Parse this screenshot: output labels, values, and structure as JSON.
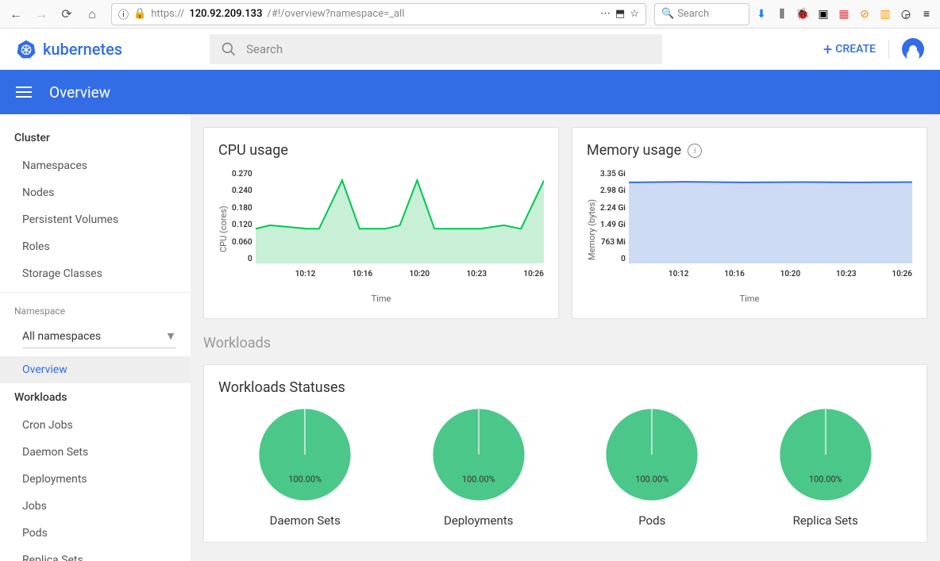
{
  "browser": {
    "url_prefix": "https://",
    "url_host": "120.92.209.133",
    "url_path": "/#!/overview?namespace=_all",
    "search_placeholder": "Search"
  },
  "header": {
    "brand": "kubernetes",
    "search_placeholder": "Search",
    "create": "CREATE"
  },
  "bluebar": {
    "title": "Overview"
  },
  "sidebar": {
    "cluster_heading": "Cluster",
    "cluster_items": [
      "Namespaces",
      "Nodes",
      "Persistent Volumes",
      "Roles",
      "Storage Classes"
    ],
    "namespace_heading": "Namespace",
    "namespace_select": "All namespaces",
    "overview": "Overview",
    "workloads_heading": "Workloads",
    "workloads_items": [
      "Cron Jobs",
      "Daemon Sets",
      "Deployments",
      "Jobs",
      "Pods",
      "Replica Sets"
    ]
  },
  "charts": {
    "cpu": {
      "title": "CPU usage",
      "ylabel": "CPU (cores)",
      "xlabel": "Time",
      "yticks": [
        "0.270",
        "0.240",
        "0.180",
        "0.120",
        "0.060",
        "0"
      ],
      "xticks": [
        "10:12",
        "10:16",
        "10:20",
        "10:23",
        "10:26"
      ],
      "ylim": [
        0,
        0.27
      ],
      "points": [
        [
          0,
          0.1
        ],
        [
          0.05,
          0.11
        ],
        [
          0.18,
          0.1
        ],
        [
          0.22,
          0.1
        ],
        [
          0.3,
          0.24
        ],
        [
          0.36,
          0.1
        ],
        [
          0.45,
          0.1
        ],
        [
          0.5,
          0.11
        ],
        [
          0.56,
          0.24
        ],
        [
          0.62,
          0.1
        ],
        [
          0.7,
          0.1
        ],
        [
          0.78,
          0.1
        ],
        [
          0.86,
          0.11
        ],
        [
          0.92,
          0.1
        ],
        [
          1.0,
          0.24
        ]
      ],
      "line_color": "#00c752",
      "fill_color": "#c8f0d7"
    },
    "memory": {
      "title": "Memory usage",
      "ylabel": "Memory (bytes)",
      "xlabel": "Time",
      "yticks": [
        "3.35 Gi",
        "2.98 Gi",
        "2.24 Gi",
        "1.49 Gi",
        "763 Mi",
        "0"
      ],
      "xticks": [
        "10:12",
        "10:16",
        "10:20",
        "10:23",
        "10:26"
      ],
      "ylim": [
        0,
        3.35
      ],
      "points": [
        [
          0,
          2.9
        ],
        [
          0.2,
          2.92
        ],
        [
          0.4,
          2.9
        ],
        [
          0.6,
          2.91
        ],
        [
          0.8,
          2.9
        ],
        [
          1.0,
          2.91
        ]
      ],
      "line_color": "#326de6",
      "fill_color": "#cddbf5"
    }
  },
  "workloads": {
    "section_title": "Workloads",
    "card_title": "Workloads Statuses",
    "color": "#4cc78a",
    "items": [
      {
        "label": "Daemon Sets",
        "pct": "100.00%"
      },
      {
        "label": "Deployments",
        "pct": "100.00%"
      },
      {
        "label": "Pods",
        "pct": "100.00%"
      },
      {
        "label": "Replica Sets",
        "pct": "100.00%"
      }
    ]
  }
}
